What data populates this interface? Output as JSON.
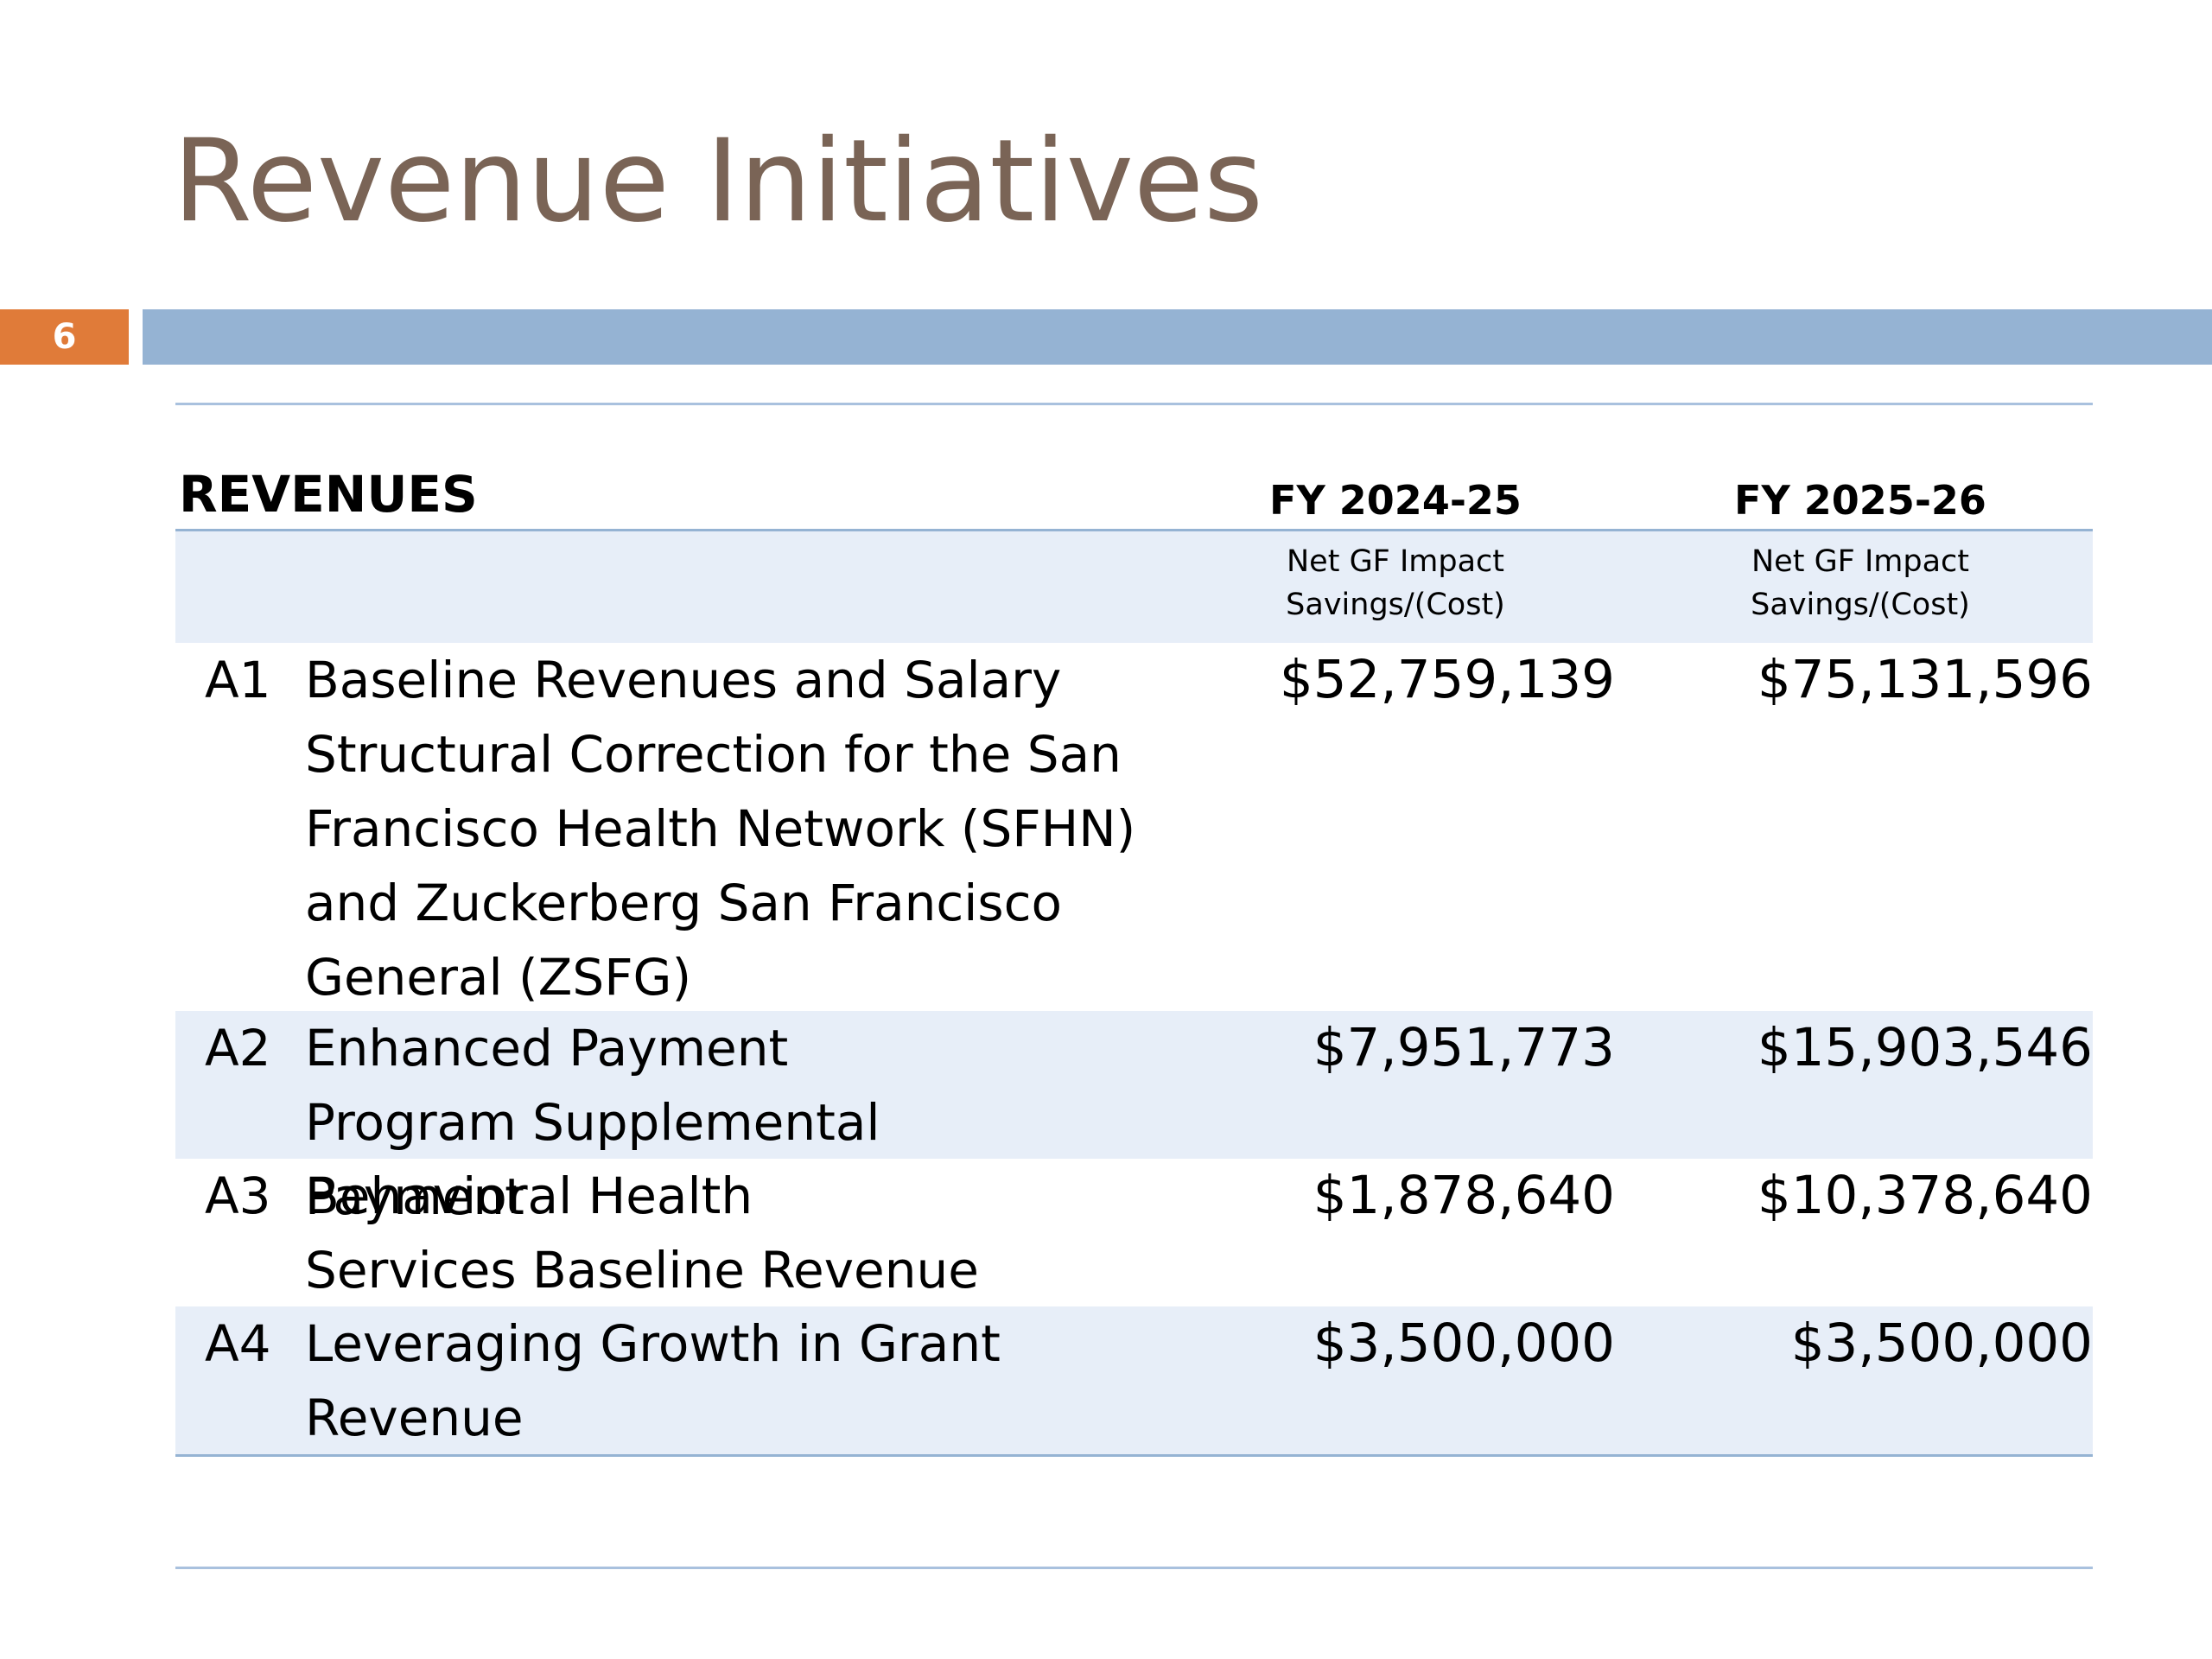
{
  "slide": {
    "title": "Revenue Initiatives",
    "number": "6"
  },
  "table": {
    "section_label": "REVENUES",
    "columns": [
      {
        "fy": "FY 2024-25",
        "sub_line1": "Net GF Impact",
        "sub_line2": "Savings/(Cost)"
      },
      {
        "fy": "FY 2025-26",
        "sub_line1": "Net GF Impact",
        "sub_line2": "Savings/(Cost)"
      }
    ],
    "rows": [
      {
        "id": "A1",
        "description": "Baseline Revenues and Salary Structural Correction for the San Francisco Health Network (SFHN) and Zuckerberg San Francisco General (ZSFG)",
        "fy2425": "$52,759,139",
        "fy2526": "$75,131,596"
      },
      {
        "id": "A2",
        "description": "Enhanced Payment Program Supplemental Payment",
        "fy2425": "$7,951,773",
        "fy2526": "$15,903,546"
      },
      {
        "id": "A3",
        "description": "Behavioral Health Services Baseline Revenue",
        "fy2425": "$1,878,640",
        "fy2526": "$10,378,640"
      },
      {
        "id": "A4",
        "description": "Leveraging Growth in Grant Revenue",
        "fy2425": "$3,500,000",
        "fy2526": "$3,500,000"
      }
    ]
  },
  "colors": {
    "title": "#7a6456",
    "slide_number_bg": "#e07b39",
    "title_bar": "#95b3d3",
    "row_shade": "#e7eef8"
  }
}
